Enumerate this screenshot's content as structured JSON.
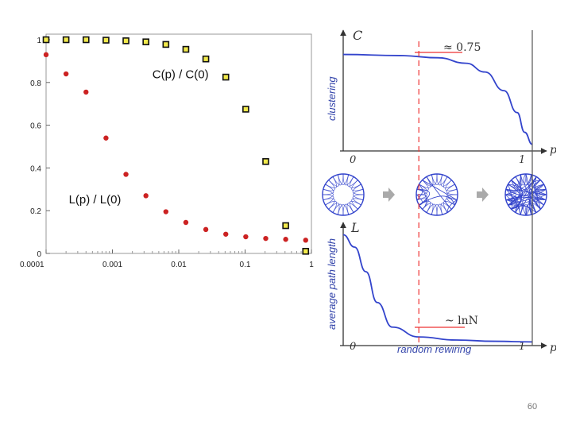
{
  "chart_data": [
    {
      "type": "scatter",
      "x_scale": "log",
      "xlim": [
        0.0001,
        1
      ],
      "ylim": [
        0,
        1
      ],
      "x_ticks": [
        {
          "value": 0.0001,
          "label": "0.0001"
        },
        {
          "value": 0.001,
          "label": "0.001"
        },
        {
          "value": 0.01,
          "label": "0.01"
        },
        {
          "value": 0.1,
          "label": "0.1"
        },
        {
          "value": 1,
          "label": "1"
        }
      ],
      "y_ticks": [
        {
          "value": 0,
          "label": "0"
        },
        {
          "value": 0.2,
          "label": "0.2"
        },
        {
          "value": 0.4,
          "label": "0.4"
        },
        {
          "value": 0.6,
          "label": "0.6"
        },
        {
          "value": 0.8,
          "label": "0.8"
        },
        {
          "value": 1,
          "label": "1"
        }
      ],
      "grid": false,
      "series": [
        {
          "name": "C(p) / C(0)",
          "marker": "square",
          "color": "#f2ea4c",
          "stroke": "#111111",
          "label_anchor": {
            "x": 0.004,
            "y": 0.82
          },
          "points": [
            {
              "x": 0.0001,
              "y": 1.0
            },
            {
              "x": 0.0002,
              "y": 1.0
            },
            {
              "x": 0.0004,
              "y": 1.0
            },
            {
              "x": 0.0008,
              "y": 0.998
            },
            {
              "x": 0.0016,
              "y": 0.995
            },
            {
              "x": 0.0032,
              "y": 0.99
            },
            {
              "x": 0.0064,
              "y": 0.978
            },
            {
              "x": 0.0128,
              "y": 0.955
            },
            {
              "x": 0.0256,
              "y": 0.91
            },
            {
              "x": 0.0512,
              "y": 0.825
            },
            {
              "x": 0.1024,
              "y": 0.675
            },
            {
              "x": 0.2048,
              "y": 0.43
            },
            {
              "x": 0.4096,
              "y": 0.13
            },
            {
              "x": 0.8192,
              "y": 0.01
            }
          ]
        },
        {
          "name": "L(p) / L(0)",
          "marker": "circle",
          "color": "#cc2222",
          "label_anchor": {
            "x": 0.00022,
            "y": 0.235
          },
          "points": [
            {
              "x": 0.0001,
              "y": 0.93
            },
            {
              "x": 0.0002,
              "y": 0.84
            },
            {
              "x": 0.0004,
              "y": 0.755
            },
            {
              "x": 0.0008,
              "y": 0.54
            },
            {
              "x": 0.0016,
              "y": 0.37
            },
            {
              "x": 0.0032,
              "y": 0.27
            },
            {
              "x": 0.0064,
              "y": 0.195
            },
            {
              "x": 0.0128,
              "y": 0.145
            },
            {
              "x": 0.0256,
              "y": 0.112
            },
            {
              "x": 0.0512,
              "y": 0.09
            },
            {
              "x": 0.1024,
              "y": 0.078
            },
            {
              "x": 0.2048,
              "y": 0.07
            },
            {
              "x": 0.4096,
              "y": 0.066
            },
            {
              "x": 0.8192,
              "y": 0.062
            }
          ]
        }
      ]
    },
    {
      "type": "line",
      "panels": [
        {
          "id": "clustering",
          "y_axis_symbol": "C",
          "ylabel": "clustering",
          "x_axis_symbol": "p",
          "tick_labels": [
            "0",
            "1"
          ],
          "annotation": "≈ 0.75",
          "color": "#3344cc",
          "curve": [
            {
              "x": 0.0,
              "y": 0.88
            },
            {
              "x": 0.3,
              "y": 0.87
            },
            {
              "x": 0.5,
              "y": 0.85
            },
            {
              "x": 0.65,
              "y": 0.8
            },
            {
              "x": 0.75,
              "y": 0.72
            },
            {
              "x": 0.85,
              "y": 0.55
            },
            {
              "x": 0.92,
              "y": 0.35
            },
            {
              "x": 0.96,
              "y": 0.17
            },
            {
              "x": 1.0,
              "y": 0.06
            }
          ]
        },
        {
          "id": "path-length",
          "y_axis_symbol": "L",
          "ylabel": "average path length",
          "x_axis_symbol": "p",
          "tick_labels": [
            "0",
            "1"
          ],
          "xlabel": "random rewiring",
          "annotation": "~ lnN",
          "color": "#3344cc",
          "curve": [
            {
              "x": 0.0,
              "y": 0.9
            },
            {
              "x": 0.06,
              "y": 0.8
            },
            {
              "x": 0.12,
              "y": 0.6
            },
            {
              "x": 0.18,
              "y": 0.35
            },
            {
              "x": 0.26,
              "y": 0.15
            },
            {
              "x": 0.4,
              "y": 0.07
            },
            {
              "x": 0.6,
              "y": 0.045
            },
            {
              "x": 0.8,
              "y": 0.035
            },
            {
              "x": 1.0,
              "y": 0.03
            }
          ]
        }
      ],
      "marker_line_x": 0.4,
      "marker_color": "#ee3333",
      "networks": [
        {
          "name": "regular-network",
          "rewired_edges": 0
        },
        {
          "name": "small-world-network",
          "rewired_edges": 8
        },
        {
          "name": "random-network",
          "rewired_edges": 40
        }
      ],
      "arrow_color": "#aaaaaa"
    }
  ],
  "page_number": "60"
}
